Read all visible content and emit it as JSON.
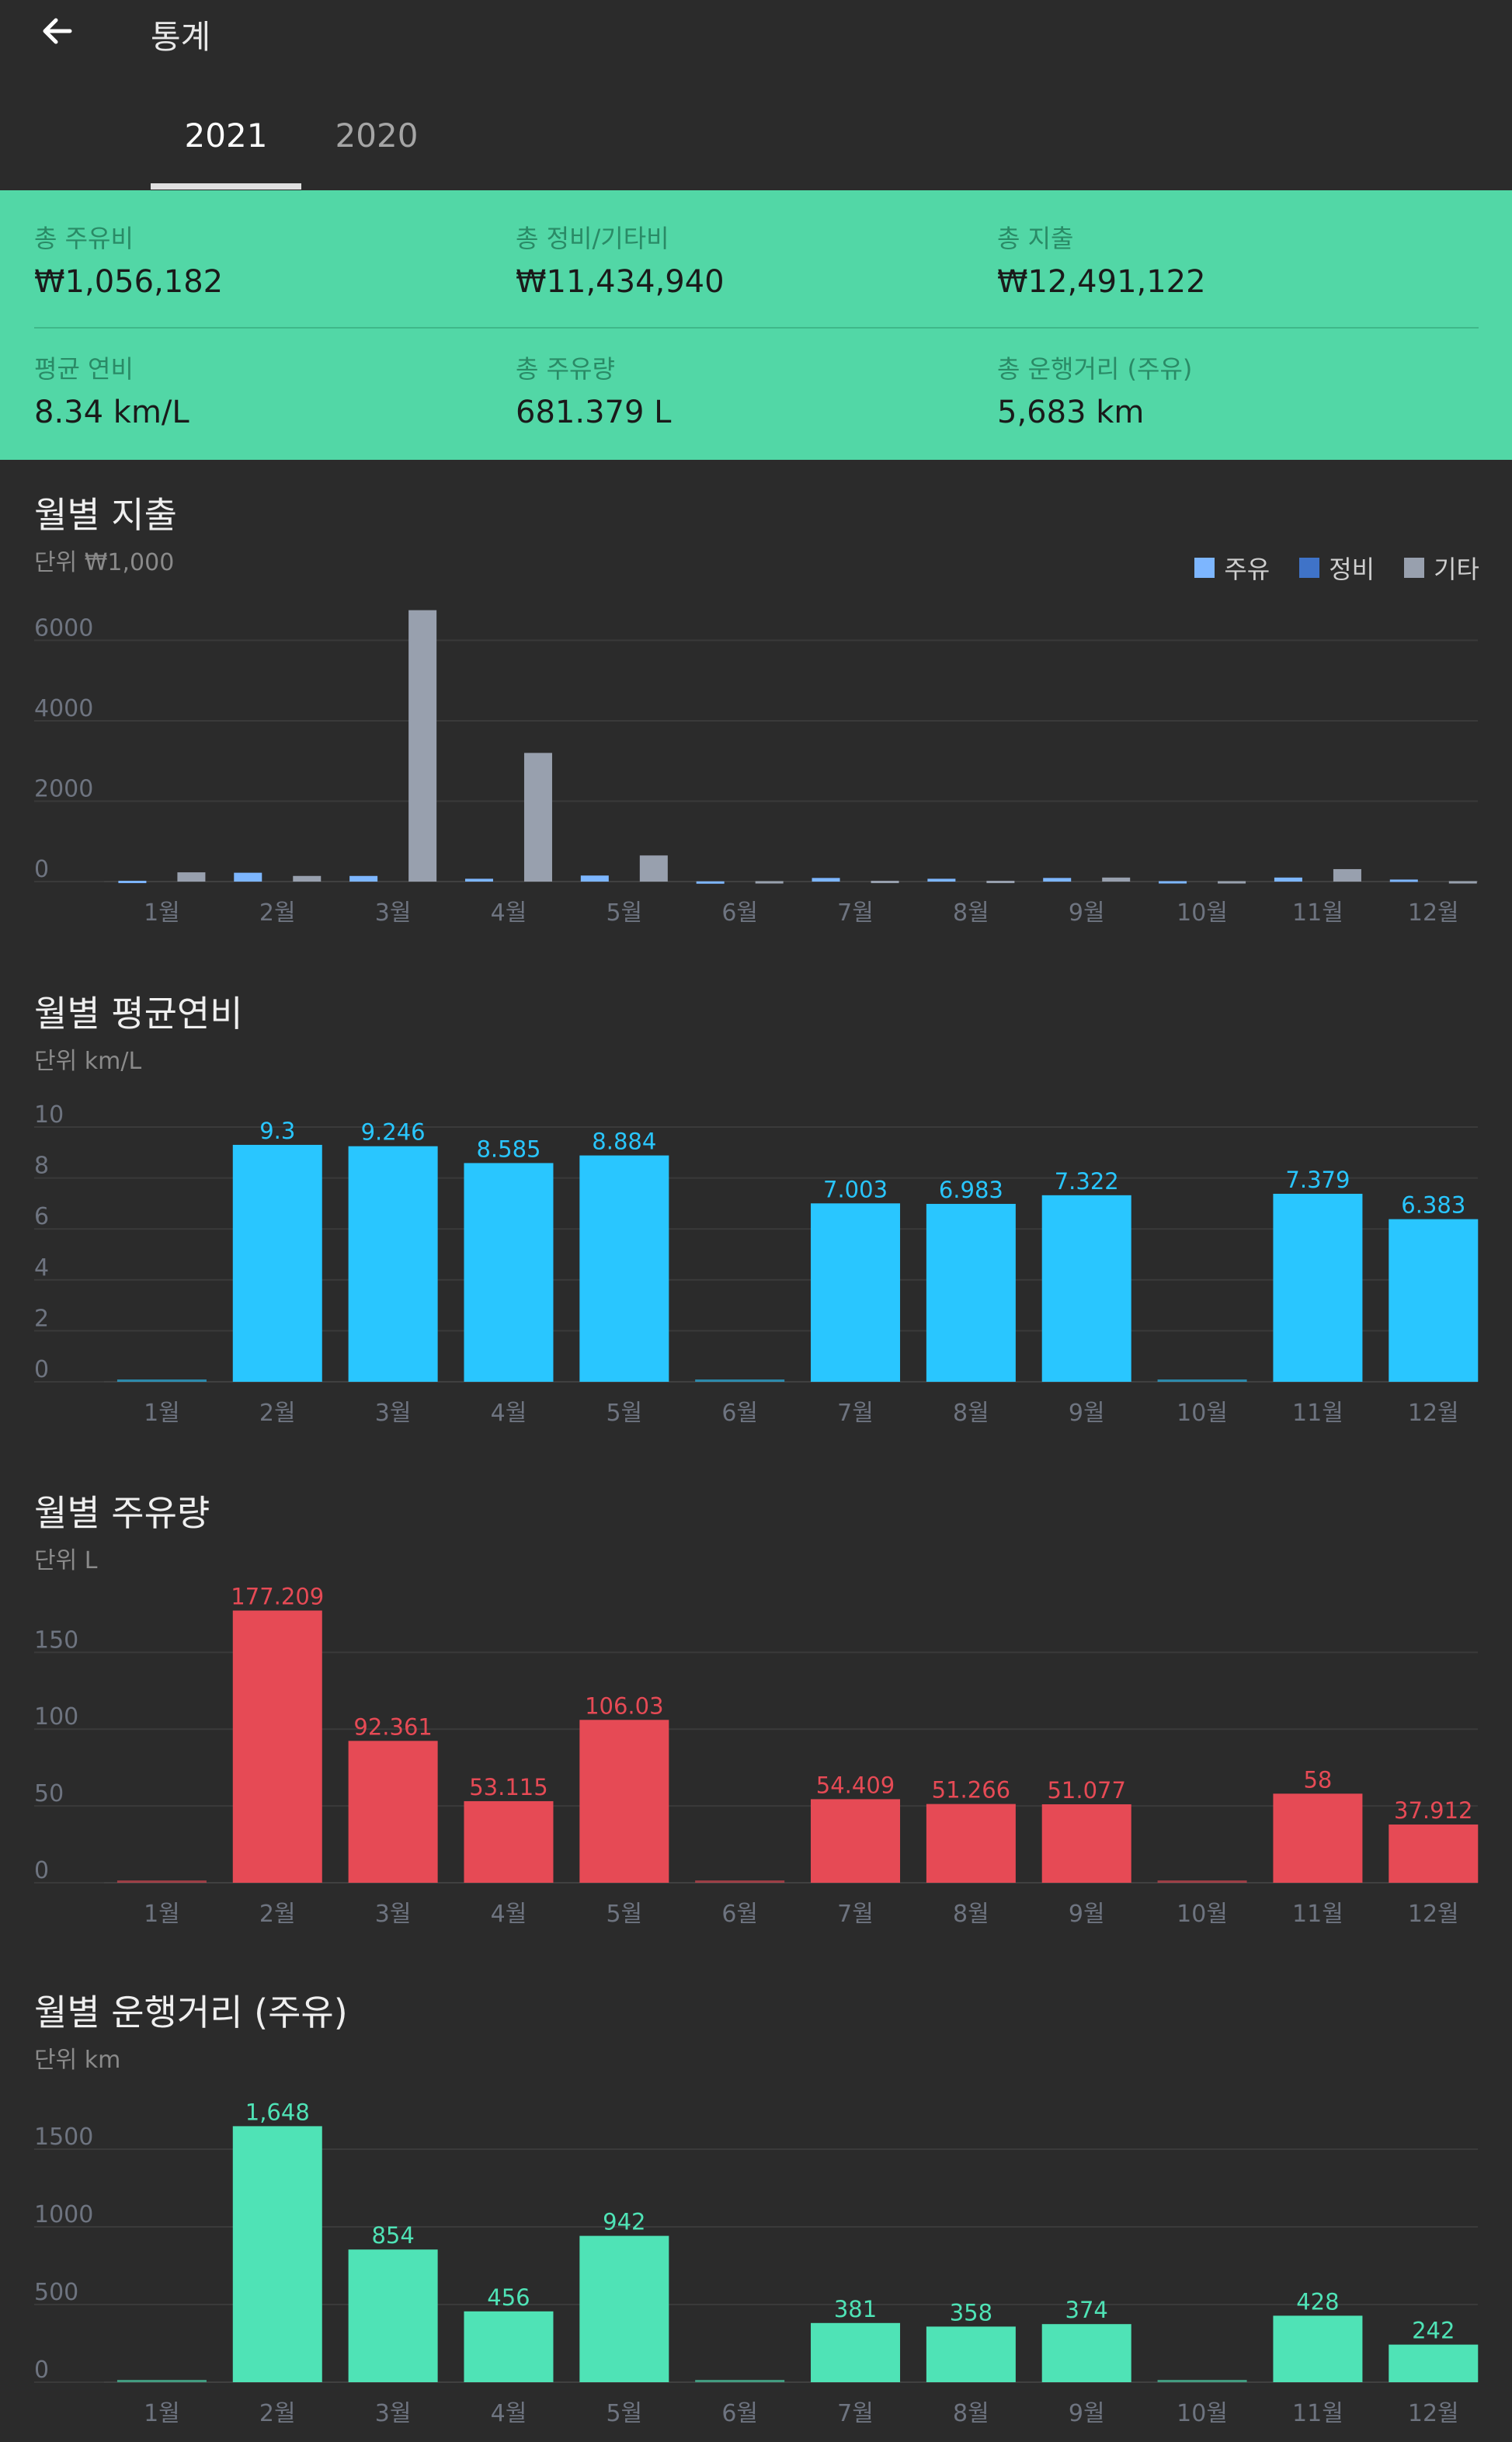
{
  "header": {
    "title": "통계",
    "tabs": [
      {
        "label": "2021",
        "active": true
      },
      {
        "label": "2020",
        "active": false
      }
    ]
  },
  "summary": {
    "items": [
      {
        "label": "총 주유비",
        "value": "₩1,056,182"
      },
      {
        "label": "총 정비/기타비",
        "value": "₩11,434,940"
      },
      {
        "label": "총 지출",
        "value": "₩12,491,122"
      },
      {
        "label": "평균 연비",
        "value": "8.34 km/L"
      },
      {
        "label": "총 주유량",
        "value": "681.379 L"
      },
      {
        "label": "총 운행거리 (주유)",
        "value": "5,683 km"
      }
    ]
  },
  "legend": [
    {
      "label": "주유",
      "color": "#7db6ff"
    },
    {
      "label": "정비",
      "color": "#3f73c8"
    },
    {
      "label": "기타",
      "color": "#98a0ae"
    }
  ],
  "chart_data": [
    {
      "type": "bar",
      "title": "월별 지출",
      "unit": "단위 ₩1,000",
      "categories": [
        "1월",
        "2월",
        "3월",
        "4월",
        "5월",
        "6월",
        "7월",
        "8월",
        "9월",
        "10월",
        "11월",
        "12월"
      ],
      "yticks": [
        "0",
        "2000",
        "4000",
        "6000"
      ],
      "ylim": [
        0,
        6800
      ],
      "series": [
        {
          "name": "주유",
          "color": "#7db6ff",
          "values": [
            20,
            220,
            140,
            70,
            150,
            5,
            90,
            70,
            90,
            10,
            100,
            50
          ]
        },
        {
          "name": "정비",
          "color": "#3f73c8",
          "values": [
            0,
            0,
            0,
            0,
            0,
            0,
            0,
            0,
            0,
            0,
            0,
            0
          ]
        },
        {
          "name": "기타",
          "color": "#98a0ae",
          "values": [
            230,
            140,
            6750,
            3200,
            650,
            10,
            20,
            20,
            100,
            10,
            310,
            10
          ]
        }
      ]
    },
    {
      "type": "bar",
      "title": "월별 평균연비",
      "unit": "단위 km/L",
      "color": "#29c6ff",
      "categories": [
        "1월",
        "2월",
        "3월",
        "4월",
        "5월",
        "6월",
        "7월",
        "8월",
        "9월",
        "10월",
        "11월",
        "12월"
      ],
      "yticks": [
        "0",
        "2",
        "4",
        "6",
        "8",
        "10"
      ],
      "ylim": [
        0,
        10
      ],
      "values": [
        0,
        9.3,
        9.246,
        8.585,
        8.884,
        0,
        7.003,
        6.983,
        7.322,
        0,
        7.379,
        6.383
      ],
      "labels": [
        "",
        "9.3",
        "9.246",
        "8.585",
        "8.884",
        "",
        "7.003",
        "6.983",
        "7.322",
        "",
        "7.379",
        "6.383"
      ]
    },
    {
      "type": "bar",
      "title": "월별 주유량",
      "unit": "단위 L",
      "color": "#e64a55",
      "categories": [
        "1월",
        "2월",
        "3월",
        "4월",
        "5월",
        "6월",
        "7월",
        "8월",
        "9월",
        "10월",
        "11월",
        "12월"
      ],
      "yticks": [
        "0",
        "50",
        "100",
        "150"
      ],
      "ylim": [
        0,
        180
      ],
      "values": [
        0,
        177.209,
        92.361,
        53.115,
        106.03,
        0,
        54.409,
        51.266,
        51.077,
        0,
        58,
        37.912
      ],
      "labels": [
        "",
        "177.209",
        "92.361",
        "53.115",
        "106.03",
        "",
        "54.409",
        "51.266",
        "51.077",
        "",
        "58",
        "37.912"
      ]
    },
    {
      "type": "bar",
      "title": "월별 운행거리 (주유)",
      "unit": "단위 km",
      "color": "#4fe3b6",
      "categories": [
        "1월",
        "2월",
        "3월",
        "4월",
        "5월",
        "6월",
        "7월",
        "8월",
        "9월",
        "10월",
        "11월",
        "12월"
      ],
      "yticks": [
        "0",
        "500",
        "1000",
        "1500"
      ],
      "ylim": [
        0,
        1650
      ],
      "values": [
        0,
        1648,
        854,
        456,
        942,
        0,
        381,
        358,
        374,
        0,
        428,
        242
      ],
      "labels": [
        "",
        "1,648",
        "854",
        "456",
        "942",
        "",
        "381",
        "358",
        "374",
        "",
        "428",
        "242"
      ]
    }
  ]
}
